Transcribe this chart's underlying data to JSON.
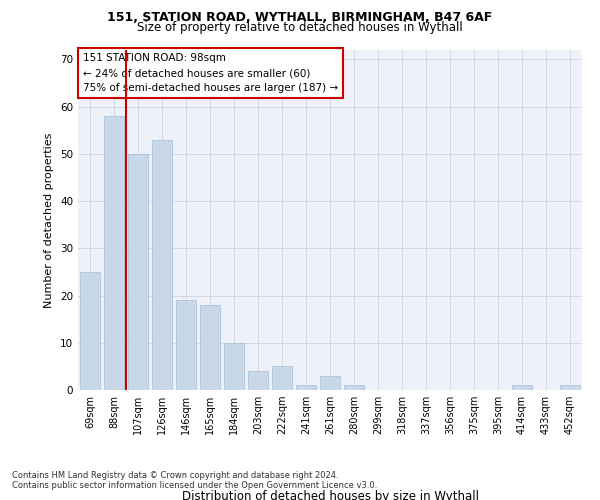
{
  "title1": "151, STATION ROAD, WYTHALL, BIRMINGHAM, B47 6AF",
  "title2": "Size of property relative to detached houses in Wythall",
  "xlabel": "Distribution of detached houses by size in Wythall",
  "ylabel": "Number of detached properties",
  "categories": [
    "69sqm",
    "88sqm",
    "107sqm",
    "126sqm",
    "146sqm",
    "165sqm",
    "184sqm",
    "203sqm",
    "222sqm",
    "241sqm",
    "261sqm",
    "280sqm",
    "299sqm",
    "318sqm",
    "337sqm",
    "356sqm",
    "375sqm",
    "395sqm",
    "414sqm",
    "433sqm",
    "452sqm"
  ],
  "values": [
    25,
    58,
    50,
    53,
    19,
    18,
    10,
    4,
    5,
    1,
    3,
    1,
    0,
    0,
    0,
    0,
    0,
    0,
    1,
    0,
    1
  ],
  "bar_color": "#c8d8e8",
  "bar_edge_color": "#a8bfd0",
  "grid_color": "#d0d8e8",
  "bg_color": "#eef2f8",
  "vline_x": 1.5,
  "vline_color": "#cc0000",
  "annotation_lines": [
    "151 STATION ROAD: 98sqm",
    "← 24% of detached houses are smaller (60)",
    "75% of semi-detached houses are larger (187) →"
  ],
  "annotation_box_color": "white",
  "annotation_box_edge": "#cc0000",
  "ylim": [
    0,
    72
  ],
  "yticks": [
    0,
    10,
    20,
    30,
    40,
    50,
    60,
    70
  ],
  "footer1": "Contains HM Land Registry data © Crown copyright and database right 2024.",
  "footer2": "Contains public sector information licensed under the Open Government Licence v3.0."
}
